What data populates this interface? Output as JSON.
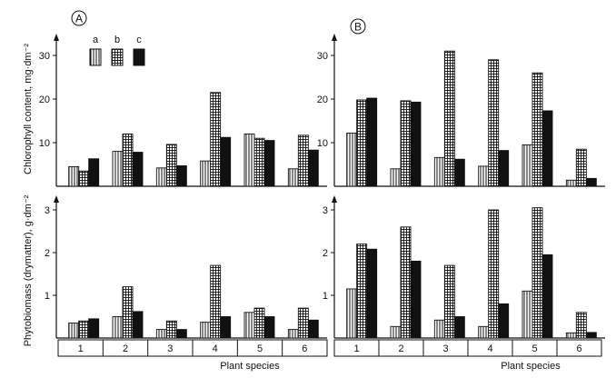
{
  "panel_labels": [
    "A",
    "B"
  ],
  "legend": {
    "labels": [
      "a",
      "b",
      "c"
    ]
  },
  "xlabel": "Plant species",
  "colors": {
    "ink": "#111111",
    "background": "#ffffff"
  },
  "chart_data": [
    {
      "type": "bar",
      "panel": "A",
      "row": "top",
      "categories": [
        "1",
        "2",
        "3",
        "4",
        "5",
        "6"
      ],
      "series": [
        {
          "name": "a",
          "values": [
            4.5,
            8,
            4.2,
            5.8,
            12,
            4
          ]
        },
        {
          "name": "b",
          "values": [
            3.5,
            12,
            9.6,
            21.5,
            11,
            11.7
          ]
        },
        {
          "name": "c",
          "values": [
            6.3,
            7.8,
            4.7,
            11.2,
            10.5,
            8.3
          ]
        }
      ],
      "ylabel": "Chlorophyll content, mg·dm⁻²",
      "yticks": [
        10,
        20,
        30
      ],
      "ylim": [
        0,
        37
      ]
    },
    {
      "type": "bar",
      "panel": "B",
      "row": "top",
      "categories": [
        "1",
        "2",
        "3",
        "4",
        "5",
        "6"
      ],
      "series": [
        {
          "name": "a",
          "values": [
            12.2,
            4,
            6.6,
            4.6,
            9.5,
            1.4
          ]
        },
        {
          "name": "b",
          "values": [
            19.8,
            19.6,
            31,
            29,
            26,
            8.5
          ]
        },
        {
          "name": "c",
          "values": [
            20.2,
            19.3,
            6.2,
            8.2,
            17.3,
            1.8
          ]
        }
      ],
      "ylabel": "",
      "yticks": [
        10,
        20,
        30
      ],
      "ylim": [
        0,
        37
      ]
    },
    {
      "type": "bar",
      "panel": "A",
      "row": "bottom",
      "categories": [
        "1",
        "2",
        "3",
        "4",
        "5",
        "6"
      ],
      "series": [
        {
          "name": "a",
          "values": [
            0.35,
            0.5,
            0.2,
            0.37,
            0.6,
            0.2
          ]
        },
        {
          "name": "b",
          "values": [
            0.4,
            1.2,
            0.4,
            1.7,
            0.7,
            0.7
          ]
        },
        {
          "name": "c",
          "values": [
            0.45,
            0.62,
            0.2,
            0.5,
            0.5,
            0.42
          ]
        }
      ],
      "ylabel": "Phytobiomass (drymatter), g·dm⁻²",
      "yticks": [
        1,
        2,
        3
      ],
      "ylim": [
        0,
        3.6
      ]
    },
    {
      "type": "bar",
      "panel": "B",
      "row": "bottom",
      "categories": [
        "1",
        "2",
        "3",
        "4",
        "5",
        "6"
      ],
      "series": [
        {
          "name": "a",
          "values": [
            1.15,
            0.27,
            0.42,
            0.27,
            1.1,
            0.12
          ]
        },
        {
          "name": "b",
          "values": [
            2.2,
            2.6,
            1.7,
            3.0,
            3.05,
            0.6
          ]
        },
        {
          "name": "c",
          "values": [
            2.08,
            1.8,
            0.5,
            0.8,
            1.95,
            0.13
          ]
        }
      ],
      "ylabel": "",
      "yticks": [
        1,
        2,
        3
      ],
      "ylim": [
        0,
        3.6
      ]
    }
  ]
}
